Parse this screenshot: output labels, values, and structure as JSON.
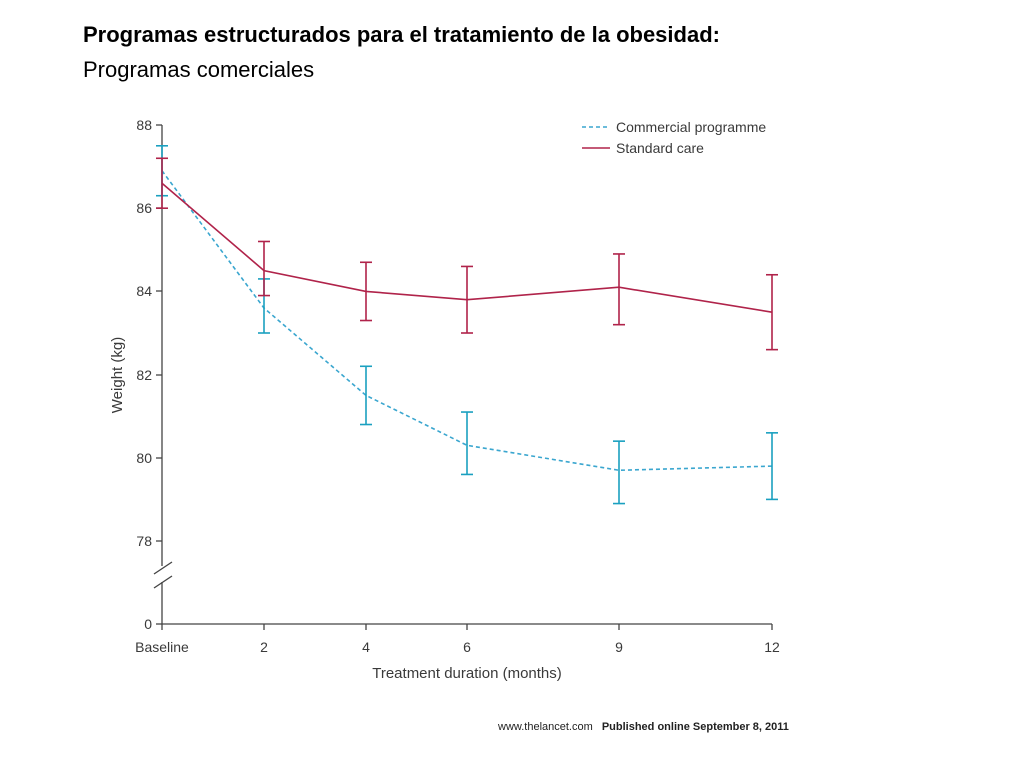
{
  "slide": {
    "title": "Programas estructurados para el tratamiento de la obesidad:",
    "subtitle": "Programas comerciales"
  },
  "credit": {
    "site": "www.thelancet.com",
    "published": "Published online September 8, 2011"
  },
  "chart_data": {
    "type": "line",
    "xlabel": "Treatment duration (months)",
    "ylabel": "Weight (kg)",
    "x_categories": [
      "Baseline",
      "2",
      "4",
      "6",
      "9",
      "12"
    ],
    "x_values": [
      0,
      2,
      4,
      6,
      9,
      12
    ],
    "y_ticks": [
      "88",
      "86",
      "84",
      "82",
      "80",
      "78",
      "0"
    ],
    "ylim": [
      78,
      88
    ],
    "y_axis_break": true,
    "legend_position": "top-right",
    "grid": false,
    "series": [
      {
        "name": "Commercial programme",
        "style": "dashed",
        "color": "#3aa6cf",
        "errorbar_color": "#1aa0c0",
        "values": [
          86.9,
          83.6,
          81.5,
          80.3,
          79.7,
          79.8
        ],
        "error_low": [
          86.3,
          83.0,
          80.8,
          79.6,
          78.9,
          79.0
        ],
        "error_high": [
          87.5,
          84.3,
          82.2,
          81.1,
          80.4,
          80.6
        ]
      },
      {
        "name": "Standard care",
        "style": "solid",
        "color": "#b0234a",
        "errorbar_color": "#b0234a",
        "values": [
          86.6,
          84.5,
          84.0,
          83.8,
          84.1,
          83.5
        ],
        "error_low": [
          86.0,
          83.9,
          83.3,
          83.0,
          83.2,
          82.6
        ],
        "error_high": [
          87.2,
          85.2,
          84.7,
          84.6,
          84.9,
          84.4
        ]
      }
    ]
  }
}
